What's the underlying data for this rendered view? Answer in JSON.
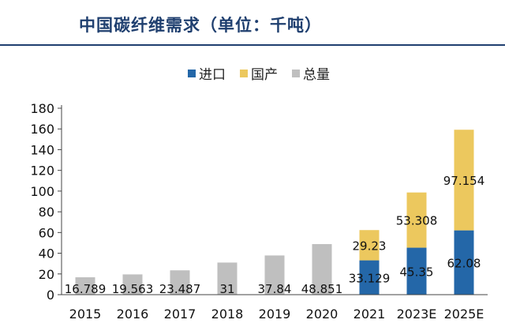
{
  "chart_data": {
    "type": "bar",
    "title": "中国碳纤维需求（单位：千吨）",
    "categories": [
      "2015",
      "2016",
      "2017",
      "2018",
      "2019",
      "2020",
      "2021",
      "2023E",
      "2025E"
    ],
    "series": [
      {
        "name": "进口",
        "color": "#2467a8",
        "values": [
          null,
          null,
          null,
          null,
          null,
          null,
          33.129,
          45.35,
          62.08
        ],
        "labels": [
          "",
          "",
          "",
          "",
          "",
          "",
          "33.129",
          "45.35",
          "62.08"
        ]
      },
      {
        "name": "国产",
        "color": "#ecc85e",
        "values": [
          null,
          null,
          null,
          null,
          null,
          null,
          29.23,
          53.308,
          97.154
        ],
        "labels": [
          "",
          "",
          "",
          "",
          "",
          "",
          "29.23",
          "53.308",
          "97.154"
        ]
      },
      {
        "name": "总量",
        "color": "#bfbfbf",
        "values": [
          16.789,
          19.563,
          23.487,
          31,
          37.84,
          48.851,
          null,
          null,
          null
        ],
        "labels": [
          "16.789",
          "19.563",
          "23.487",
          "31",
          "37.84",
          "48.851",
          "",
          "",
          ""
        ]
      }
    ],
    "ylim": [
      0,
      180
    ],
    "yticks": [
      0,
      20,
      40,
      60,
      80,
      100,
      120,
      140,
      160,
      180
    ],
    "legend_position": "top",
    "grid": false
  }
}
